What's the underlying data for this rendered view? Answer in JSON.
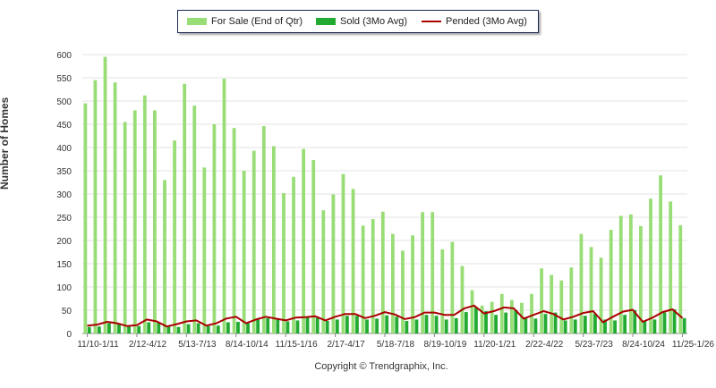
{
  "chart_data": {
    "type": "bar",
    "title": "",
    "ylabel": "Number of Homes",
    "xlabel": "",
    "ylim": [
      0,
      600
    ],
    "yticks": [
      0,
      50,
      100,
      150,
      200,
      250,
      300,
      350,
      400,
      450,
      500,
      550,
      600
    ],
    "grid": true,
    "legend_position": "top-center",
    "x_tick_labels": [
      "11/10-1/11",
      "2/12-4/12",
      "5/13-7/13",
      "8/14-10/14",
      "11/15-1/16",
      "2/17-4/17",
      "5/18-7/18",
      "8/19-10/19",
      "11/20-1/21",
      "2/22-4/22",
      "5/23-7/23",
      "8/24-10/24",
      "11/25-1/26"
    ],
    "series": [
      {
        "name": "For Sale (End of Qtr)",
        "type": "bar",
        "color": "#99dd77",
        "values": [
          495,
          545,
          595,
          540,
          455,
          480,
          512,
          480,
          330,
          415,
          537,
          490,
          357,
          450,
          548,
          442,
          350,
          393,
          446,
          403,
          302,
          337,
          397,
          373,
          265,
          299,
          343,
          311,
          232,
          246,
          262,
          214,
          178,
          211,
          261,
          261,
          181,
          197,
          145,
          93,
          60,
          68,
          85,
          72,
          66,
          85,
          140,
          126,
          114,
          142,
          214,
          186,
          163,
          223,
          253,
          256,
          231,
          290,
          340,
          284,
          233
        ]
      },
      {
        "name": "Sold (3Mo Avg)",
        "type": "bar",
        "color": "#22aa33",
        "values": [
          14,
          15,
          22,
          20,
          15,
          16,
          24,
          23,
          15,
          14,
          20,
          22,
          16,
          17,
          24,
          25,
          22,
          30,
          33,
          32,
          26,
          28,
          35,
          34,
          27,
          30,
          38,
          38,
          30,
          32,
          39,
          36,
          27,
          30,
          40,
          38,
          30,
          33,
          46,
          56,
          48,
          40,
          45,
          50,
          35,
          32,
          42,
          45,
          28,
          30,
          38,
          42,
          30,
          28,
          40,
          50,
          28,
          30,
          45,
          52,
          33
        ]
      },
      {
        "name": "Pended (3Mo Avg)",
        "type": "line",
        "color": "#aa0000",
        "values": [
          17,
          19,
          25,
          22,
          16,
          18,
          30,
          26,
          15,
          20,
          26,
          28,
          17,
          22,
          32,
          36,
          22,
          30,
          36,
          32,
          28,
          34,
          35,
          37,
          28,
          36,
          42,
          42,
          33,
          38,
          46,
          41,
          31,
          35,
          45,
          45,
          40,
          40,
          54,
          60,
          43,
          48,
          56,
          54,
          32,
          40,
          48,
          42,
          30,
          36,
          44,
          48,
          24,
          36,
          47,
          51,
          25,
          34,
          46,
          52,
          33
        ]
      }
    ]
  },
  "legend": {
    "for_sale": "For Sale (End of Qtr)",
    "sold": "Sold (3Mo Avg)",
    "pended": "Pended (3Mo Avg)"
  },
  "copyright": "Copyright © Trendgraphix, Inc."
}
